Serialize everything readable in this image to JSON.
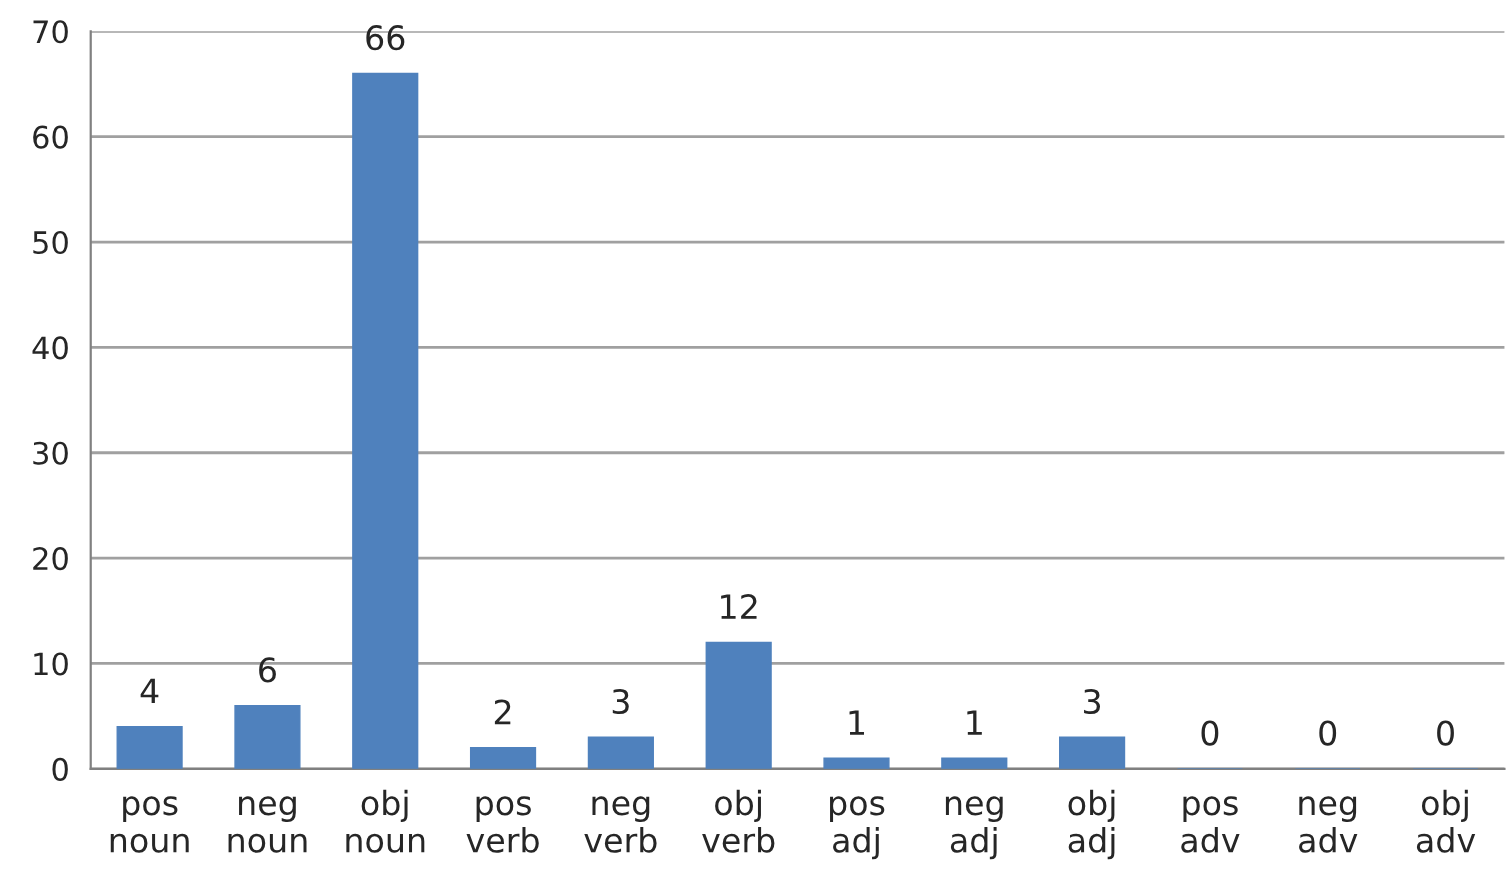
{
  "chart_data": {
    "type": "bar",
    "categories": [
      "pos\nnoun",
      "neg\nnoun",
      "obj\nnoun",
      "pos\nverb",
      "neg\nverb",
      "obj\nverb",
      "pos\nadj",
      "neg\nadj",
      "obj\nadj",
      "pos\nadv",
      "neg\nadv",
      "obj\nadv"
    ],
    "values": [
      4,
      6,
      66,
      2,
      3,
      12,
      1,
      1,
      3,
      0,
      0,
      0
    ],
    "color": "#4f81bd",
    "ylim": [
      0,
      70
    ],
    "yticks": [
      0,
      10,
      20,
      30,
      40,
      50,
      60,
      70
    ],
    "grid": "y",
    "data_labels": true,
    "legend": false
  }
}
